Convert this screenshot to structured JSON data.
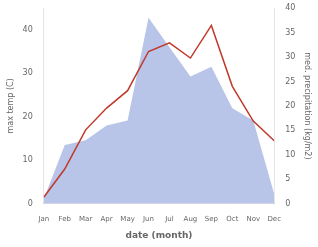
{
  "chart_data": {
    "type": "line",
    "xlabel": "date (month)",
    "ylabel": "max temp (C)",
    "y2label": "med. precipitation (kg/m2)",
    "categories": [
      "Jan",
      "Feb",
      "Mar",
      "Apr",
      "May",
      "Jun",
      "Jul",
      "Aug",
      "Sep",
      "Oct",
      "Nov",
      "Dec"
    ],
    "series": [
      {
        "type": "area",
        "axis": "y2",
        "color": "#b8c4e8",
        "values": [
          1.0,
          12.0,
          13.0,
          16.0,
          17.0,
          38.0,
          32.0,
          26.0,
          28.0,
          19.5,
          17.0,
          2.0
        ]
      },
      {
        "type": "line",
        "color": "#c0392b",
        "values": [
          1.5,
          8.0,
          17.0,
          22.0,
          26.0,
          35.0,
          37.0,
          33.5,
          41.0,
          27.0,
          19.0,
          14.5
        ]
      }
    ],
    "ylim": [
      0,
      45
    ],
    "yticks": [
      0,
      10,
      20,
      30,
      40
    ],
    "y2lim": [
      0,
      40
    ],
    "y2ticks": [
      0,
      5,
      10,
      15,
      20,
      25,
      30,
      35,
      40
    ],
    "grid": false
  }
}
